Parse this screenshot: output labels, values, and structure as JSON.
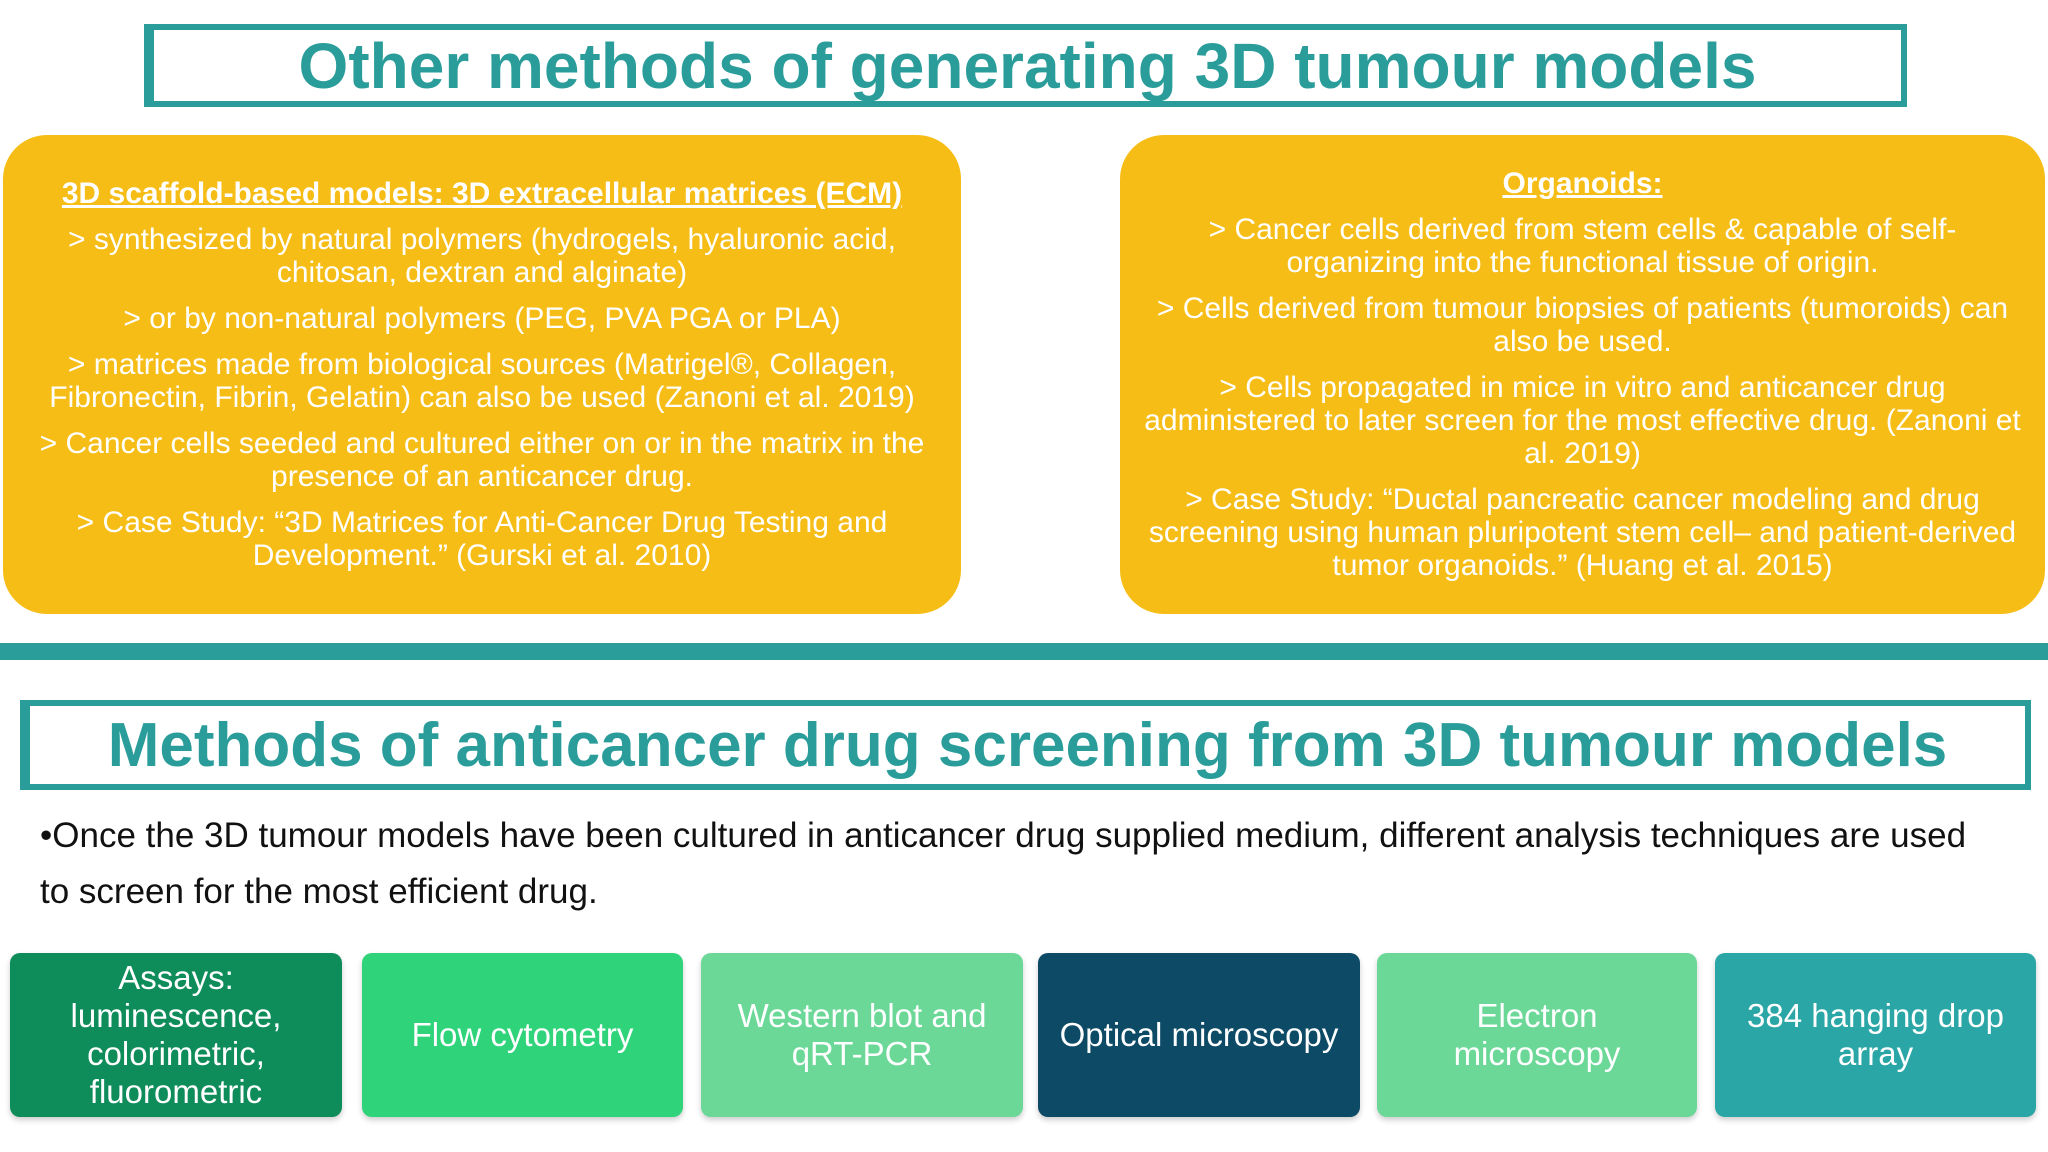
{
  "title": "Other methods of generating 3D tumour models",
  "left_box": {
    "heading": "3D scaffold-based models: 3D extracellular matrices (ECM)",
    "items": [
      "> synthesized by natural polymers  (hydrogels, hyaluronic acid, chitosan, dextran and alginate)",
      "> or by non-natural polymers (PEG, PVA PGA or PLA)",
      "> matrices made from biological sources (Matrigel®, Collagen, Fibronectin, Fibrin, Gelatin) can also be used (Zanoni et al. 2019)",
      "> Cancer cells seeded and cultured either on or in the matrix in the presence of an anticancer drug.",
      "> Case Study: “3D Matrices for Anti-Cancer Drug Testing and Development.” (Gurski et al. 2010)"
    ]
  },
  "right_box": {
    "heading": "Organoids:",
    "items": [
      "> Cancer cells derived from stem cells & capable of self-organizing into the functional tissue of origin.",
      "> Cells derived from tumour biopsies of patients (tumoroids) can also be used.",
      "> Cells propagated in mice in vitro and anticancer drug administered to later screen for the most effective drug. (Zanoni et al. 2019)",
      "> Case Study: “Ductal pancreatic cancer modeling and drug screening using human pluripotent stem cell– and patient-derived tumor organoids.” (Huang et al. 2015)"
    ]
  },
  "section_title": "Methods of anticancer drug screening from 3D tumour models",
  "body": "•Once the 3D tumour models have been cultured in anticancer drug supplied medium, different analysis techniques are used to screen for the most efficient drug.",
  "methods": [
    "Assays: luminescence, colorimetric, fluorometric",
    "Flow cytometry",
    "Western blot and qRT-PCR",
    "Optical microscopy",
    "Electron microscopy",
    "384 hanging drop array"
  ]
}
